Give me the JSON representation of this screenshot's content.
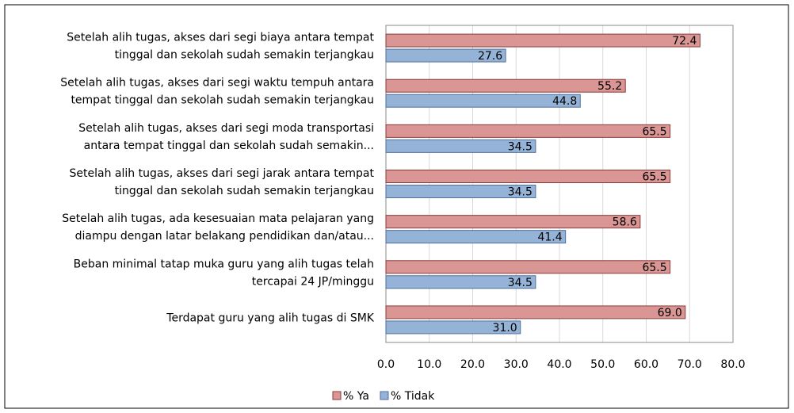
{
  "chart_data": {
    "type": "barh",
    "categories": [
      [
        "Setelah alih tugas, akses dari segi biaya antara tempat",
        "tinggal dan sekolah sudah semakin terjangkau"
      ],
      [
        "Setelah alih tugas, akses dari segi waktu tempuh antara",
        "tempat tinggal dan sekolah sudah semakin terjangkau"
      ],
      [
        "Setelah alih tugas, akses dari segi moda transportasi",
        "antara tempat tinggal dan sekolah sudah semakin..."
      ],
      [
        "Setelah alih tugas, akses dari segi jarak antara tempat",
        "tinggal dan sekolah sudah semakin terjangkau"
      ],
      [
        "Setelah alih tugas,  ada kesesuaian mata pelajaran yang",
        "diampu dengan latar belakang pendidikan dan/atau..."
      ],
      [
        "Beban minimal tatap muka guru yang alih tugas telah",
        "tercapai 24 JP/minggu"
      ],
      [
        "Terdapat guru yang alih tugas di SMK"
      ]
    ],
    "series": [
      {
        "name": "% Ya",
        "color": "#d99694",
        "border": "#8b3a3a",
        "values": [
          72.4,
          55.2,
          65.5,
          65.5,
          58.6,
          65.5,
          69.0
        ],
        "value_labels": [
          "72.4",
          "55.2",
          "65.5",
          "65.5",
          "58.6",
          "65.5",
          "69.0"
        ]
      },
      {
        "name": "% Tidak",
        "color": "#95b3d7",
        "border": "#4f6f9d",
        "values": [
          27.6,
          44.8,
          34.5,
          34.5,
          41.4,
          34.5,
          31.0
        ],
        "value_labels": [
          "27.6",
          "44.8",
          "34.5",
          "34.5",
          "41.4",
          "34.5",
          "31.0"
        ]
      }
    ],
    "xlim": [
      0,
      80
    ],
    "xticks": [
      {
        "value": 0,
        "label": "0.0"
      },
      {
        "value": 10,
        "label": "10.0"
      },
      {
        "value": 20,
        "label": "20.0"
      },
      {
        "value": 30,
        "label": "30.0"
      },
      {
        "value": 40,
        "label": "40.0"
      },
      {
        "value": 50,
        "label": "50.0"
      },
      {
        "value": 60,
        "label": "60.0"
      },
      {
        "value": 70,
        "label": "70.0"
      },
      {
        "value": 80,
        "label": "80.0"
      }
    ],
    "grid": true,
    "legend": "bottom"
  }
}
